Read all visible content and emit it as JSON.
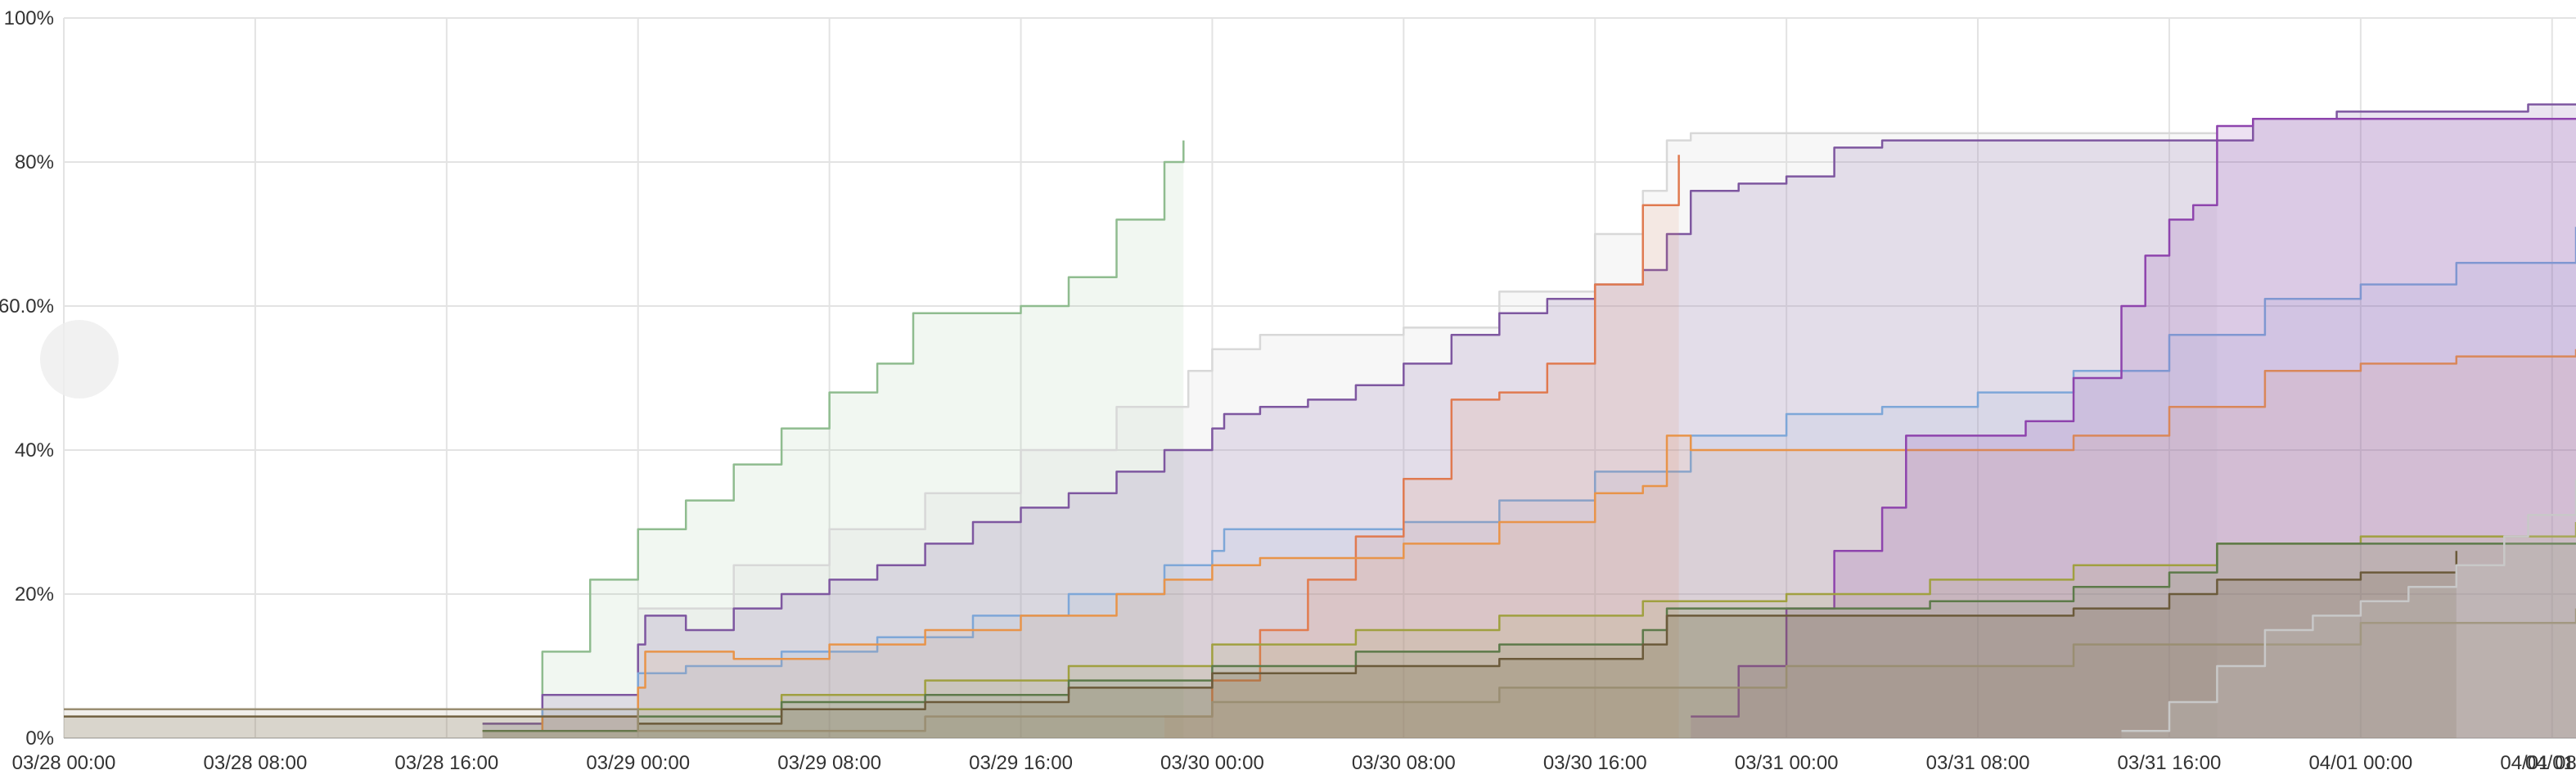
{
  "chart_data": {
    "type": "area",
    "title": "",
    "xlabel": "",
    "ylabel": "",
    "grid": true,
    "x_ticks": [
      "03/28 00:00",
      "03/28 08:00",
      "03/28 16:00",
      "03/29 00:00",
      "03/29 08:00",
      "03/29 16:00",
      "03/30 00:00",
      "03/30 08:00",
      "03/30 16:00",
      "03/31 00:00",
      "03/31 08:00",
      "03/31 16:00",
      "04/01 00:00",
      "04/01 08:00",
      "04/01"
    ],
    "y_ticks": [
      "0%",
      "20%",
      "40%",
      "60.0%",
      "80%",
      "100%"
    ],
    "xlim": [
      0,
      105
    ],
    "ylim": [
      0,
      100
    ],
    "x_unit": "hours since 03/28 00:00",
    "series": [
      {
        "color": "#8fbc8f",
        "opacity": 0.12,
        "x": [
          17.5,
          20,
          22,
          24,
          26,
          28,
          30,
          32,
          34,
          35.5,
          37,
          38,
          40,
          42,
          44,
          46,
          46.8
        ],
        "values": [
          2,
          12,
          22,
          29,
          33,
          38,
          43,
          48,
          52,
          59,
          59,
          59,
          60,
          64,
          72,
          80,
          83
        ]
      },
      {
        "color": "#d8d8d8",
        "opacity": 0.2,
        "x": [
          24,
          28,
          32,
          36,
          40,
          44,
          47,
          48,
          50,
          52,
          56,
          60,
          64,
          66,
          67,
          68,
          72,
          76,
          80,
          84,
          88,
          90
        ],
        "values": [
          18,
          24,
          29,
          34,
          40,
          46,
          51,
          54,
          56,
          56,
          57,
          62,
          70,
          76,
          83,
          84,
          84,
          84,
          84,
          84,
          84,
          84
        ]
      },
      {
        "color": "#7e57a0",
        "opacity": 0.16,
        "x": [
          17.5,
          20,
          24,
          24.3,
          26,
          28,
          30,
          32,
          34,
          36,
          38,
          40,
          42,
          44,
          46,
          48,
          48.5,
          50,
          52,
          54,
          56,
          58,
          60,
          62,
          64,
          66,
          67,
          68,
          70,
          72,
          74,
          76,
          78,
          80,
          82,
          84,
          88,
          91,
          91.5,
          95,
          99,
          103,
          105
        ],
        "values": [
          2,
          6,
          13,
          17,
          15,
          18,
          20,
          22,
          24,
          27,
          30,
          32,
          34,
          37,
          40,
          43,
          45,
          46,
          47,
          49,
          52,
          56,
          59,
          61,
          63,
          65,
          70,
          76,
          77,
          78,
          82,
          83,
          83,
          83,
          83,
          83,
          83,
          83,
          86,
          87,
          87,
          88,
          88
        ]
      },
      {
        "color": "#7ea7d8",
        "opacity": 0.1,
        "x": [
          17.5,
          20,
          24,
          26,
          30,
          34,
          38,
          42,
          46,
          48,
          48.5,
          52,
          56,
          60,
          64,
          68,
          72,
          76,
          80,
          84,
          88,
          92,
          96,
          100,
          105
        ],
        "values": [
          1,
          4,
          9,
          10,
          12,
          14,
          17,
          20,
          24,
          26,
          29,
          29,
          30,
          33,
          37,
          42,
          45,
          46,
          48,
          51,
          56,
          61,
          63,
          66,
          71
        ]
      },
      {
        "color": "#e07a50",
        "opacity": 0.12,
        "x": [
          46,
          48,
          50,
          52,
          54,
          56,
          58,
          60,
          62,
          64,
          66,
          67.5
        ],
        "values": [
          3,
          8,
          15,
          22,
          28,
          36,
          47,
          48,
          52,
          63,
          74,
          81
        ]
      },
      {
        "color": "#e8944a",
        "opacity": 0.1,
        "x": [
          17.5,
          20,
          24,
          24.3,
          28,
          32,
          36,
          40,
          44,
          46,
          48,
          50,
          52,
          56,
          60,
          64,
          66,
          67,
          68,
          72,
          76,
          80,
          84,
          88,
          92,
          96,
          100,
          105
        ],
        "values": [
          1,
          3,
          7,
          12,
          11,
          13,
          15,
          17,
          20,
          22,
          24,
          25,
          25,
          27,
          30,
          34,
          35,
          42,
          40,
          40,
          40,
          40,
          42,
          46,
          51,
          52,
          53,
          54
        ]
      },
      {
        "color": "#8e44ad",
        "opacity": 0.16,
        "x": [
          68,
          70,
          72,
          74,
          76,
          77,
          78,
          80,
          82,
          84,
          86,
          87,
          88,
          89,
          90,
          91.5,
          95,
          100,
          105
        ],
        "values": [
          3,
          10,
          18,
          26,
          32,
          42,
          42,
          42,
          44,
          50,
          60,
          67,
          72,
          74,
          85,
          86,
          86,
          86,
          86
        ]
      },
      {
        "color": "#a0a040",
        "opacity": 0.12,
        "x": [
          17.5,
          24,
          30,
          36,
          42,
          48,
          54,
          60,
          66,
          72,
          78,
          84,
          90,
          96,
          105
        ],
        "values": [
          1,
          4,
          6,
          8,
          10,
          13,
          15,
          17,
          19,
          20,
          22,
          24,
          27,
          28,
          30
        ]
      },
      {
        "color": "#5d7a4a",
        "opacity": 0.12,
        "x": [
          17.5,
          24,
          30,
          36,
          42,
          48,
          54,
          60,
          66,
          67,
          72,
          78,
          84,
          88,
          90,
          96,
          100,
          105
        ],
        "values": [
          1,
          3,
          5,
          6,
          8,
          10,
          12,
          13,
          15,
          18,
          18,
          19,
          21,
          23,
          27,
          27,
          27,
          27
        ]
      },
      {
        "color": "#6b5a3a",
        "opacity": 0.18,
        "x": [
          0,
          17.5,
          24,
          30,
          36,
          42,
          48,
          54,
          60,
          66,
          67,
          72,
          78,
          84,
          88,
          90,
          96,
          100
        ],
        "values": [
          3,
          3,
          2,
          4,
          5,
          7,
          9,
          10,
          11,
          13,
          17,
          17,
          17,
          18,
          20,
          22,
          23,
          26
        ]
      },
      {
        "color": "#9a8e72",
        "opacity": 0.14,
        "x": [
          0,
          17.5,
          24,
          36,
          48,
          60,
          72,
          84,
          96,
          105
        ],
        "values": [
          4,
          4,
          1,
          3,
          5,
          7,
          10,
          13,
          16,
          18
        ]
      },
      {
        "color": "#c8c8c8",
        "opacity": 0.18,
        "x": [
          86,
          88,
          90,
          92,
          94,
          96,
          98,
          100,
          102,
          103,
          105
        ],
        "values": [
          1,
          5,
          10,
          15,
          17,
          19,
          21,
          24,
          28,
          31,
          36
        ]
      }
    ]
  }
}
